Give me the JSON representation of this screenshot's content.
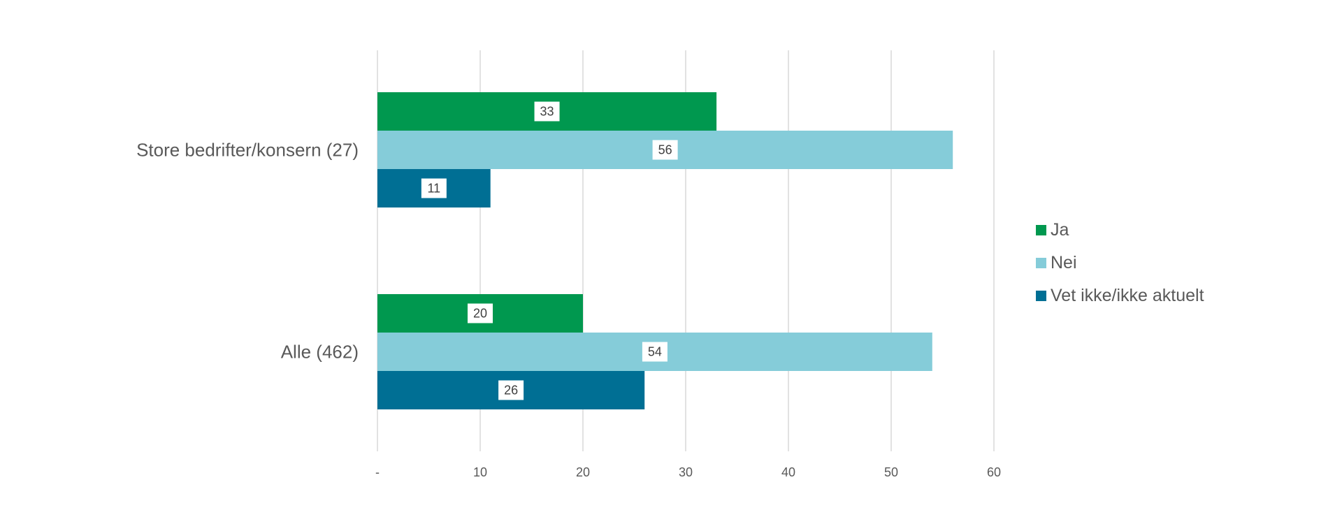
{
  "chart_data": {
    "type": "bar",
    "orientation": "horizontal",
    "categories": [
      "Store bedrifter/konsern (27)",
      "Alle (462)"
    ],
    "series": [
      {
        "name": "Ja",
        "values": [
          33,
          20
        ],
        "color": "#00984F"
      },
      {
        "name": "Nei",
        "values": [
          56,
          54
        ],
        "color": "#85CCD9"
      },
      {
        "name": "Vet ikke/ikke aktuelt",
        "values": [
          11,
          26
        ],
        "color": "#006F94"
      }
    ],
    "xlim": [
      0,
      60
    ],
    "xticks": [
      0,
      10,
      20,
      30,
      40,
      50,
      60
    ],
    "xtick_labels": [
      "-",
      "10",
      "20",
      "30",
      "40",
      "50",
      "60"
    ],
    "title": "",
    "xlabel": "",
    "ylabel": "",
    "grid": "vertical",
    "legend_position": "right"
  }
}
